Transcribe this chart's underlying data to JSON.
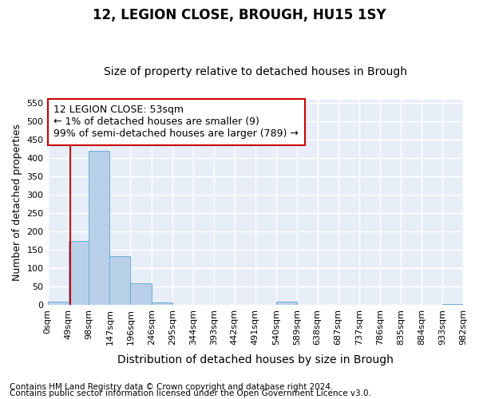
{
  "title": "12, LEGION CLOSE, BROUGH, HU15 1SY",
  "subtitle": "Size of property relative to detached houses in Brough",
  "xlabel": "Distribution of detached houses by size in Brough",
  "ylabel": "Number of detached properties",
  "footnote1": "Contains HM Land Registry data © Crown copyright and database right 2024.",
  "footnote2": "Contains public sector information licensed under the Open Government Licence v3.0.",
  "annotation_title": "12 LEGION CLOSE: 53sqm",
  "annotation_line2": "← 1% of detached houses are smaller (9)",
  "annotation_line3": "99% of semi-detached houses are larger (789) →",
  "bar_edges": [
    0,
    49,
    98,
    147,
    196,
    246,
    295,
    344,
    393,
    442,
    491,
    540,
    589,
    638,
    687,
    737,
    786,
    835,
    884,
    933,
    982
  ],
  "bar_heights": [
    9,
    174,
    420,
    133,
    59,
    8,
    0,
    0,
    0,
    0,
    0,
    9,
    0,
    0,
    0,
    0,
    0,
    0,
    0,
    3
  ],
  "bar_color": "#b8d0e8",
  "bar_edge_color": "#6aadd5",
  "red_line_x": 53,
  "ylim": [
    0,
    560
  ],
  "yticks": [
    0,
    50,
    100,
    150,
    200,
    250,
    300,
    350,
    400,
    450,
    500,
    550
  ],
  "xtick_labels": [
    "0sqm",
    "49sqm",
    "98sqm",
    "147sqm",
    "196sqm",
    "246sqm",
    "295sqm",
    "344sqm",
    "393sqm",
    "442sqm",
    "491sqm",
    "540sqm",
    "589sqm",
    "638sqm",
    "687sqm",
    "737sqm",
    "786sqm",
    "835sqm",
    "884sqm",
    "933sqm",
    "982sqm"
  ],
  "bg_color": "#e8eef8",
  "grid_color": "#ffffff",
  "annotation_box_color": "#ffffff",
  "annotation_border_color": "#cc0000",
  "title_fontsize": 12,
  "subtitle_fontsize": 10,
  "annotation_fontsize": 9,
  "tick_fontsize": 8,
  "ylabel_fontsize": 9,
  "xlabel_fontsize": 10,
  "footnote_fontsize": 7.5
}
